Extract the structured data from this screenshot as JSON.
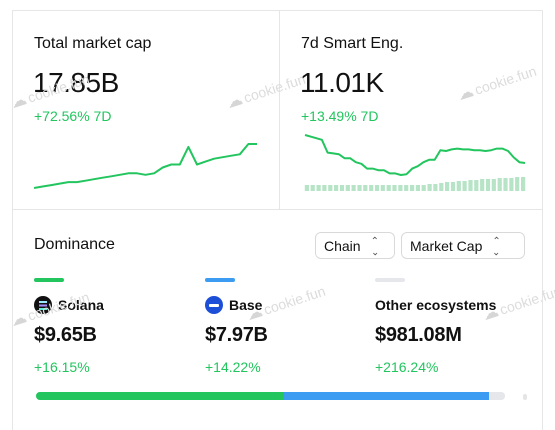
{
  "cards": [
    {
      "title": "Total market cap",
      "value": "17.85B",
      "change": "+72.56% 7D",
      "sparkline": [
        50,
        50.5,
        51,
        51.5,
        52,
        52,
        52.5,
        53,
        53.5,
        54,
        54.5,
        55,
        55,
        54.5,
        55,
        57,
        58,
        58,
        64,
        58,
        59,
        60,
        60.5,
        61,
        61.5,
        65,
        65
      ]
    },
    {
      "title": "7d Smart Eng.",
      "value": "11.01K",
      "change": "+13.49% 7D",
      "sparkline": [
        64,
        62,
        60,
        58,
        42,
        41,
        40,
        35,
        35,
        30,
        28,
        22,
        22,
        20,
        20,
        16,
        16,
        14,
        15,
        22,
        25,
        30,
        33,
        33,
        45,
        44,
        46,
        47,
        46,
        46,
        45,
        45,
        44,
        45,
        47,
        47,
        44,
        36,
        30,
        29
      ],
      "volume": [
        6,
        6,
        6,
        6,
        6,
        6,
        6,
        6,
        6,
        6,
        6,
        6,
        6,
        6,
        6,
        6,
        6,
        6,
        6,
        6,
        6,
        7,
        7,
        8,
        9,
        9,
        10,
        10,
        11,
        11,
        12,
        12,
        12,
        13,
        13,
        13,
        14,
        14
      ]
    }
  ],
  "watermark": "cookie.fun",
  "dominance": {
    "title": "Dominance",
    "filters": [
      {
        "label": "Chain"
      },
      {
        "label": "Market Cap"
      }
    ],
    "ecosystems": [
      {
        "name": "Solana",
        "value": "$9.65B",
        "change": "+16.15%",
        "color": "#22c55e",
        "share": 0.5287
      },
      {
        "name": "Base",
        "value": "$7.97B",
        "change": "+14.22%",
        "color": "#3b9cf2",
        "share": 0.4367
      },
      {
        "name": "Other ecosystems",
        "value": "$981.08M",
        "change": "+216.24%",
        "color": "#e5e7eb",
        "share": 0.0537
      }
    ]
  },
  "colors": {
    "positive": "#22c55e",
    "volume_bar": "#b7e4c7",
    "border": "#e6e6e6"
  }
}
